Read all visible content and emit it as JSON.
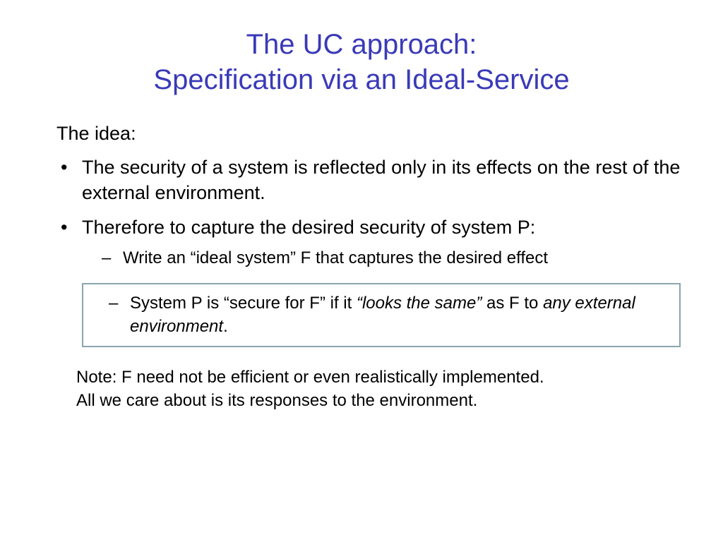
{
  "title_color": "#3a3ab8",
  "box_border_color": "#8aa5ad",
  "background_color": "#ffffff",
  "text_color": "#000000",
  "title": {
    "line1": "The UC approach:",
    "line2": "Specification via an Ideal-Service",
    "fontsize": 40
  },
  "intro": "The idea:",
  "bullets": [
    {
      "text": "The security of a system is reflected only in its effects on the rest of the external environment."
    },
    {
      "text": "Therefore to capture the desired security of system P:",
      "sub": [
        {
          "text": "Write an “ideal system”   F that captures the desired effect"
        }
      ],
      "boxed_sub": {
        "prefix": "System P is “secure for F” if it ",
        "ital1": "“looks the same”",
        "mid": " as F to ",
        "ital2": "any external environment",
        "suffix": "."
      }
    }
  ],
  "note": {
    "line1": "Note: F need not be efficient or even realistically implemented.",
    "line2": "All we care about is its responses to the environment."
  },
  "body_fontsize": 27,
  "sub_fontsize": 24
}
